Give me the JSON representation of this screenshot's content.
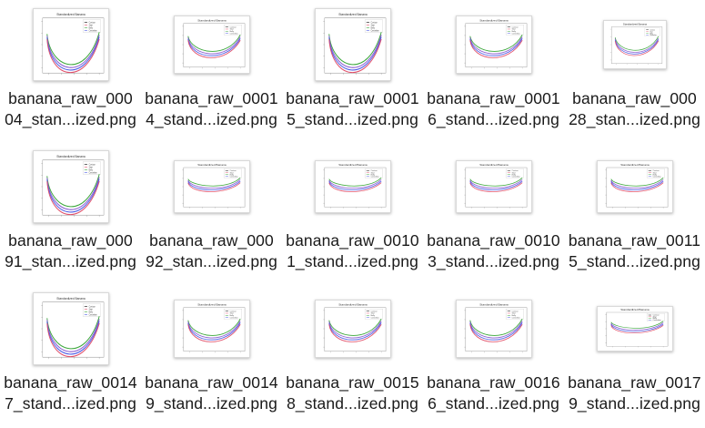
{
  "files": [
    {
      "line1": "banana_raw_000",
      "line2": "04_stan...ized.png",
      "variant": "tall",
      "plot_title": "Standardized Banana",
      "legend": [
        "Contour",
        "Start",
        "Belly",
        "Centerline"
      ]
    },
    {
      "line1": "banana_raw_0001",
      "line2": "4_stand...ized.png",
      "variant": "wide",
      "plot_title": "Standardized Banana",
      "legend": [
        "Contour",
        "Start",
        "Belly",
        "Centerline"
      ]
    },
    {
      "line1": "banana_raw_0001",
      "line2": "5_stand...ized.png",
      "variant": "tall",
      "plot_title": "Standardized Banana",
      "legend": [
        "Contour",
        "Start",
        "Belly",
        "Centerline"
      ]
    },
    {
      "line1": "banana_raw_0001",
      "line2": "6_stand...ized.png",
      "variant": "wide",
      "plot_title": "Standardized Banana",
      "legend": [
        "Contour",
        "Start",
        "Belly",
        "Centerline"
      ]
    },
    {
      "line1": "banana_raw_000",
      "line2": "28_stan...ized.png",
      "variant": "wide-small",
      "plot_title": "Standardized Banana",
      "legend": [
        "Contour",
        "Start",
        "Belly",
        "Centerline"
      ]
    },
    {
      "line1": "banana_raw_000",
      "line2": "91_stan...ized.png",
      "variant": "tall",
      "plot_title": "Standardized Banana",
      "legend": [
        "Contour",
        "Start",
        "Belly",
        "Centerline"
      ]
    },
    {
      "line1": "banana_raw_000",
      "line2": "92_stan...ized.png",
      "variant": "flat",
      "plot_title": "Standardized Banana",
      "legend": [
        "Contour",
        "Start",
        "Belly",
        "Centerline"
      ]
    },
    {
      "line1": "banana_raw_0010",
      "line2": "1_stand...ized.png",
      "variant": "flat",
      "plot_title": "Standardized Banana",
      "legend": [
        "Contour",
        "Start",
        "Belly",
        "Centerline"
      ]
    },
    {
      "line1": "banana_raw_0010",
      "line2": "3_stand...ized.png",
      "variant": "flat",
      "plot_title": "Standardized Banana",
      "legend": [
        "Contour",
        "Start",
        "Belly",
        "Centerline"
      ]
    },
    {
      "line1": "banana_raw_0011",
      "line2": "5_stand...ized.png",
      "variant": "flat",
      "plot_title": "Standardized Banana",
      "legend": [
        "Contour",
        "Start",
        "Belly",
        "Centerline"
      ]
    },
    {
      "line1": "banana_raw_0014",
      "line2": "7_stand...ized.png",
      "variant": "tall",
      "plot_title": "Standardized Banana",
      "legend": [
        "Contour",
        "Start",
        "Belly",
        "Centerline"
      ]
    },
    {
      "line1": "banana_raw_0014",
      "line2": "9_stand...ized.png",
      "variant": "wide",
      "plot_title": "Standardized Banana",
      "legend": [
        "Contour",
        "Start",
        "Belly",
        "Centerline"
      ]
    },
    {
      "line1": "banana_raw_0015",
      "line2": "8_stand...ized.png",
      "variant": "wide",
      "plot_title": "Standardized Banana",
      "legend": [
        "Contour",
        "Start",
        "Belly",
        "Centerline"
      ]
    },
    {
      "line1": "banana_raw_0016",
      "line2": "6_stand...ized.png",
      "variant": "wide",
      "plot_title": "Standardized Banana",
      "legend": [
        "Contour",
        "Start",
        "Belly",
        "Centerline"
      ]
    },
    {
      "line1": "banana_raw_0017",
      "line2": "9_stand...ized.png",
      "variant": "flat-small",
      "plot_title": "Standardized Banana",
      "legend": [
        "Contour",
        "Start",
        "Belly",
        "Centerline"
      ]
    }
  ],
  "colors": {
    "curve_green": "#3aa63a",
    "curve_red": "#e0506a",
    "curve_blue": "#4a5ae6",
    "curve_purple": "#8a5ad0"
  }
}
